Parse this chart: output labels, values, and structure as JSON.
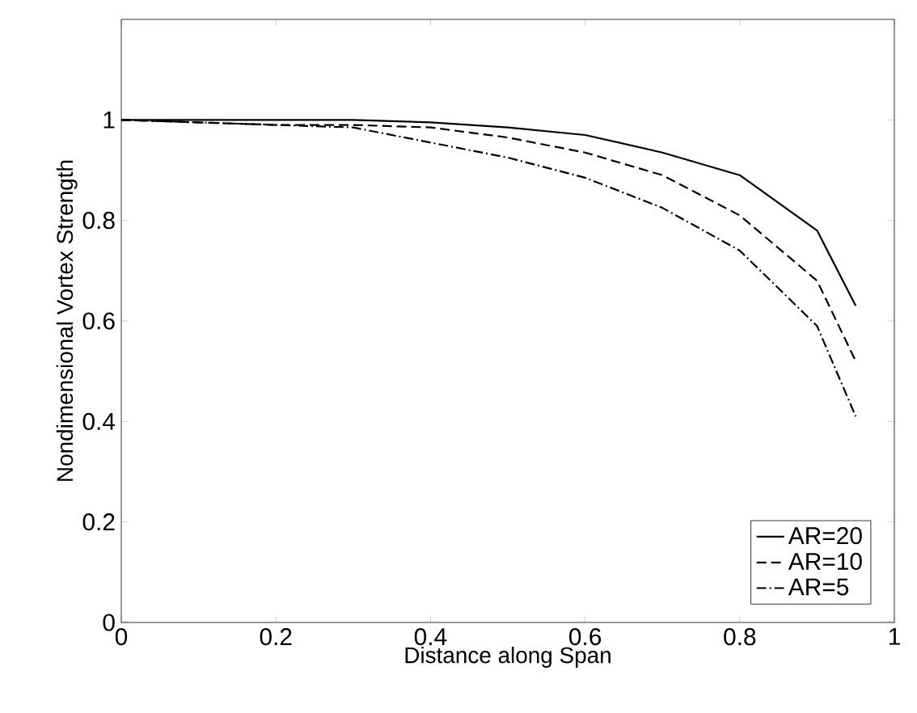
{
  "chart_data": {
    "type": "line",
    "xlabel": "Distance along Span",
    "ylabel": "Nondimensional Vortex Strength",
    "x": [
      0,
      0.1,
      0.2,
      0.3,
      0.4,
      0.5,
      0.6,
      0.7,
      0.8,
      0.9,
      0.95
    ],
    "series": [
      {
        "name": "AR=20",
        "color": "#000000",
        "line_style": "solid",
        "values": [
          1,
          1,
          1,
          1,
          0.995,
          0.985,
          0.97,
          0.935,
          0.89,
          0.78,
          0.63
        ]
      },
      {
        "name": "AR=10",
        "color": "#000000",
        "line_style": "dashed",
        "values": [
          1,
          0.995,
          0.99,
          0.99,
          0.985,
          0.965,
          0.935,
          0.89,
          0.81,
          0.68,
          0.52
        ]
      },
      {
        "name": "AR=5",
        "color": "#000000",
        "line_style": "dashdot",
        "values": [
          1,
          0.995,
          0.99,
          0.985,
          0.955,
          0.925,
          0.885,
          0.825,
          0.74,
          0.59,
          0.41
        ]
      }
    ],
    "xlim": [
      0,
      1
    ],
    "ylim": [
      0,
      1.2
    ],
    "xticks": [
      0,
      0.2,
      0.4,
      0.6,
      0.8,
      1
    ],
    "yticks": [
      0,
      0.2,
      0.4,
      0.6,
      0.8,
      1
    ],
    "legend": "bottom right",
    "grid": false
  }
}
